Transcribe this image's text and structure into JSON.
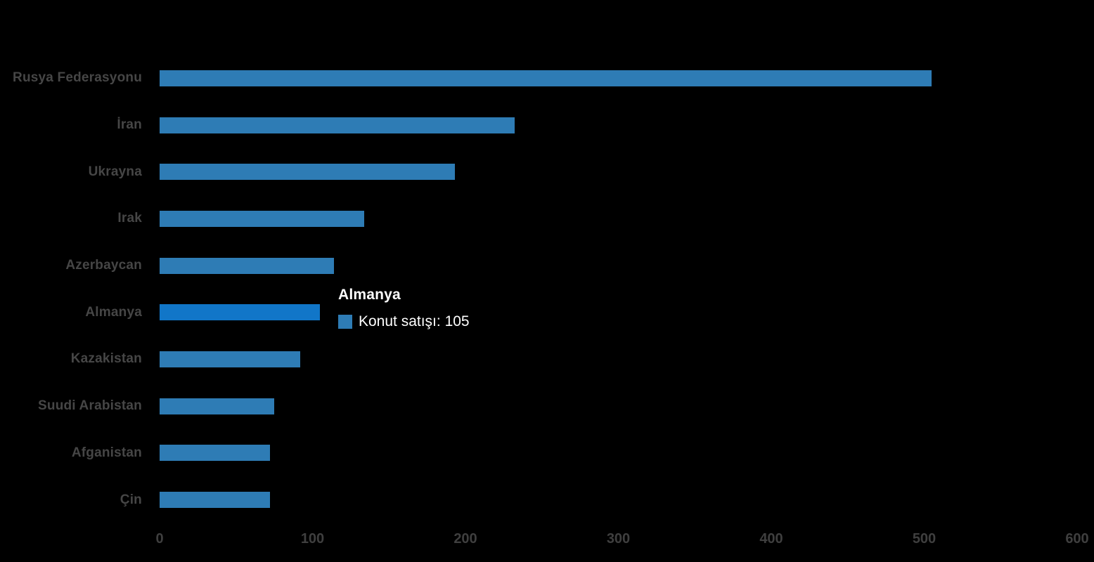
{
  "chart_data": {
    "type": "bar",
    "orientation": "horizontal",
    "title": "",
    "series_name": "Konut satışı",
    "categories": [
      "Rusya Federasyonu",
      "İran",
      "Ukrayna",
      "Irak",
      "Azerbaycan",
      "Almanya",
      "Kazakistan",
      "Suudi Arabistan",
      "Afganistan",
      "Çin"
    ],
    "values": [
      505,
      232,
      193,
      134,
      114,
      105,
      92,
      75,
      72,
      72
    ],
    "xlabel": "",
    "ylabel": "",
    "xlim": [
      0,
      600
    ],
    "x_ticks": [
      0,
      100,
      200,
      300,
      400,
      500,
      600
    ],
    "grid": false,
    "legend_position": "none",
    "highlighted_category": "Almanya",
    "colors": {
      "bar": "#2E7CB5",
      "bar_highlight": "#1176C8",
      "label": "#464646",
      "tick": "#3F3F3F",
      "background": "#000000",
      "tooltip_text": "#FFFFFF"
    }
  },
  "tooltip": {
    "title": "Almanya",
    "series": "Konut satışı",
    "value": "105",
    "text": "Konut satışı: 105"
  }
}
